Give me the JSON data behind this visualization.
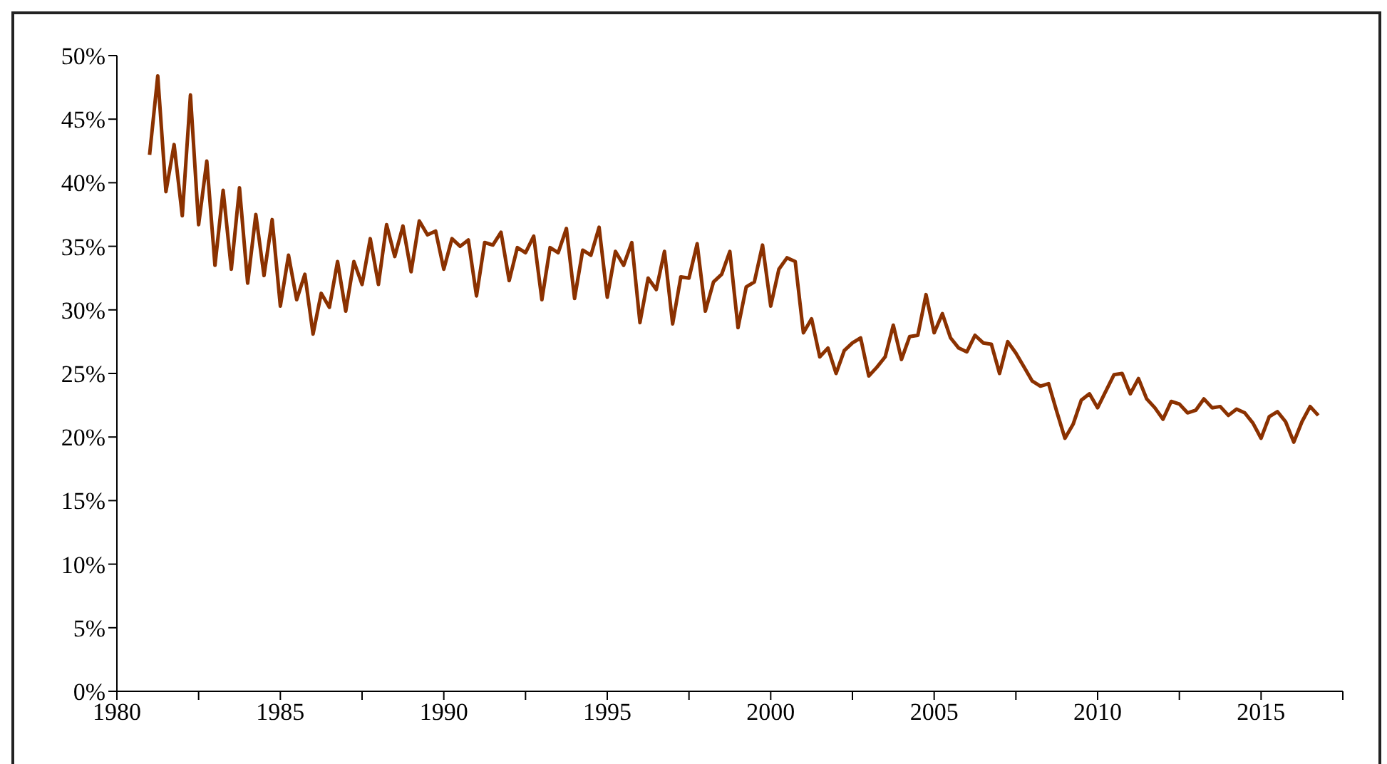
{
  "chart_data": {
    "type": "line",
    "x": [
      1981,
      1981.25,
      1981.5,
      1981.75,
      1982,
      1982.25,
      1982.5,
      1982.75,
      1983,
      1983.25,
      1983.5,
      1983.75,
      1984,
      1984.25,
      1984.5,
      1984.75,
      1985,
      1985.25,
      1985.5,
      1985.75,
      1986,
      1986.25,
      1986.5,
      1986.75,
      1987,
      1987.25,
      1987.5,
      1987.75,
      1988,
      1988.25,
      1988.5,
      1988.75,
      1989,
      1989.25,
      1989.5,
      1989.75,
      1990,
      1990.25,
      1990.5,
      1990.75,
      1991,
      1991.25,
      1991.5,
      1991.75,
      1992,
      1992.25,
      1992.5,
      1992.75,
      1993,
      1993.25,
      1993.5,
      1993.75,
      1994,
      1994.25,
      1994.5,
      1994.75,
      1995,
      1995.25,
      1995.5,
      1995.75,
      1996,
      1996.25,
      1996.5,
      1996.75,
      1997,
      1997.25,
      1997.5,
      1997.75,
      1998,
      1998.25,
      1998.5,
      1998.75,
      1999,
      1999.25,
      1999.5,
      1999.75,
      2000,
      2000.25,
      2000.5,
      2000.75,
      2001,
      2001.25,
      2001.5,
      2001.75,
      2002,
      2002.25,
      2002.5,
      2002.75,
      2003,
      2003.25,
      2003.5,
      2003.75,
      2004,
      2004.25,
      2004.5,
      2004.75,
      2005,
      2005.25,
      2005.5,
      2005.75,
      2006,
      2006.25,
      2006.5,
      2006.75,
      2007,
      2007.25,
      2007.5,
      2007.75,
      2008,
      2008.25,
      2008.5,
      2008.75,
      2009,
      2009.25,
      2009.5,
      2009.75,
      2010,
      2010.25,
      2010.5,
      2010.75,
      2011,
      2011.25,
      2011.5,
      2011.75,
      2012,
      2012.25,
      2012.5,
      2012.75,
      2013,
      2013.25,
      2013.5,
      2013.75,
      2014,
      2014.25,
      2014.5,
      2014.75,
      2015,
      2015.25,
      2015.5,
      2015.75,
      2016,
      2016.25,
      2016.5,
      2016.75
    ],
    "series": [
      {
        "color": "#8b3100",
        "values": [
          42.2,
          48.4,
          39.3,
          43.0,
          37.4,
          46.9,
          36.7,
          41.7,
          33.5,
          39.4,
          33.2,
          39.6,
          32.1,
          37.5,
          32.7,
          37.1,
          30.3,
          34.3,
          30.8,
          32.8,
          28.1,
          31.3,
          30.2,
          33.8,
          29.9,
          33.8,
          32.0,
          35.6,
          32.0,
          36.7,
          34.2,
          36.6,
          33.0,
          37.0,
          35.9,
          36.2,
          33.2,
          35.6,
          35.0,
          35.5,
          31.1,
          35.3,
          35.1,
          36.1,
          32.3,
          34.9,
          34.5,
          35.8,
          30.8,
          34.9,
          34.5,
          36.4,
          30.9,
          34.7,
          34.3,
          36.5,
          31.0,
          34.6,
          33.5,
          35.3,
          29.0,
          32.5,
          31.6,
          34.6,
          28.9,
          32.6,
          32.5,
          35.2,
          29.9,
          32.2,
          32.8,
          34.6,
          28.6,
          31.8,
          32.2,
          35.1,
          30.3,
          33.2,
          34.1,
          33.8,
          28.2,
          29.3,
          26.3,
          27.0,
          25.0,
          26.8,
          27.4,
          27.8,
          24.8,
          25.5,
          26.3,
          28.8,
          26.1,
          27.9,
          28.0,
          31.2,
          28.2,
          29.7,
          27.8,
          27.0,
          26.7,
          28.0,
          27.4,
          27.3,
          25.0,
          27.5,
          26.6,
          25.5,
          24.4,
          24.0,
          24.2,
          22.0,
          19.9,
          21.0,
          22.9,
          23.4,
          22.3,
          23.6,
          24.9,
          25.0,
          23.4,
          24.6,
          23.0,
          22.3,
          21.4,
          22.8,
          22.6,
          21.9,
          22.1,
          23.0,
          22.3,
          22.4,
          21.7,
          22.2,
          21.9,
          21.1,
          19.9,
          21.6,
          22.0,
          21.2,
          19.6,
          21.2,
          22.4,
          21.7
        ]
      }
    ],
    "xlim": [
      1980,
      2017.5
    ],
    "xticks": [
      1980,
      {
        "value": 1982.5,
        "label": null
      },
      1985,
      {
        "value": 1987.5,
        "label": null
      },
      1990,
      {
        "value": 1992.5,
        "label": null
      },
      1995,
      {
        "value": 1997.5,
        "label": null
      },
      2000,
      {
        "value": 2002.5,
        "label": null
      },
      2005,
      {
        "value": 2007.5,
        "label": null
      },
      2010,
      {
        "value": 2012.5,
        "label": null
      },
      2015,
      {
        "value": 2017.5,
        "label": null
      }
    ],
    "ylim": [
      0,
      50
    ],
    "yticks": [
      {
        "value": 0,
        "label": "0%"
      },
      {
        "value": 5,
        "label": "5%"
      },
      {
        "value": 10,
        "label": "10%"
      },
      {
        "value": 15,
        "label": "15%"
      },
      {
        "value": 20,
        "label": "20%"
      },
      {
        "value": 25,
        "label": "25%"
      },
      {
        "value": 30,
        "label": "30%"
      },
      {
        "value": 35,
        "label": "35%"
      },
      {
        "value": 40,
        "label": "40%"
      },
      {
        "value": 45,
        "label": "45%"
      },
      {
        "value": 50,
        "label": "50%"
      }
    ]
  }
}
